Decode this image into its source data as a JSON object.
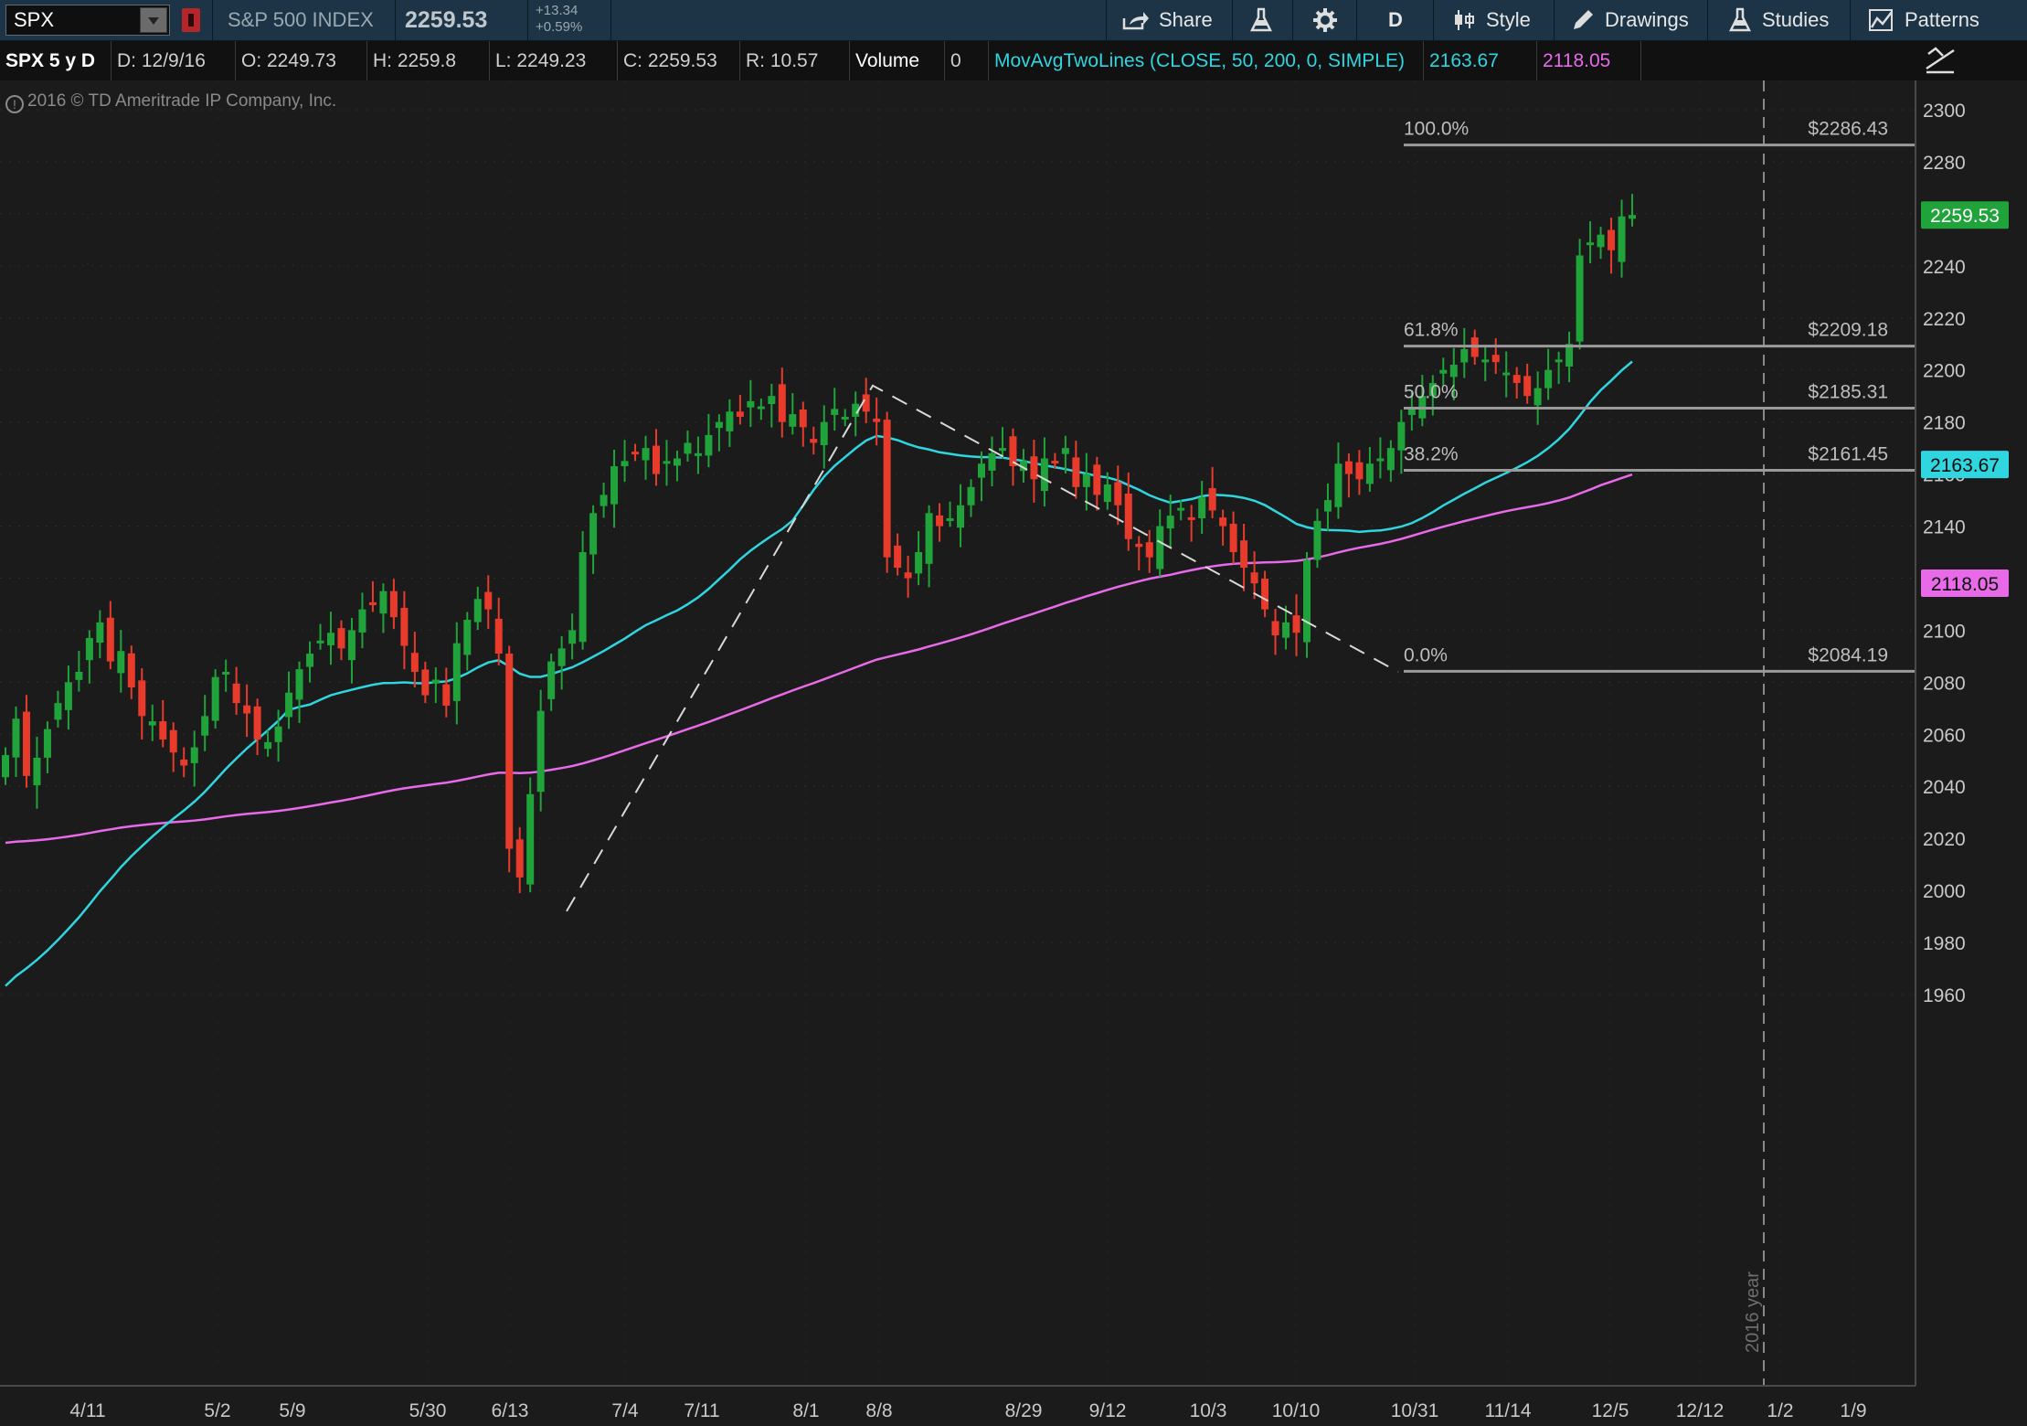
{
  "toolbar": {
    "symbol": "SPX",
    "index_name": "S&P 500 INDEX",
    "last_price": "2259.53",
    "change_abs": "+13.34",
    "change_pct": "+0.59%",
    "share_label": "Share",
    "timeframe_label": "D",
    "style_label": "Style",
    "drawings_label": "Drawings",
    "studies_label": "Studies",
    "patterns_label": "Patterns"
  },
  "info_bar": {
    "chart_title": "SPX 5 y D",
    "date": "D:  12/9/16",
    "open": "O:  2249.73",
    "high": "H:  2259.8",
    "low": "L:  2249.23",
    "close": "C:  2259.53",
    "range": "R:  10.57",
    "volume_label": "Volume",
    "volume_value": "0",
    "study_label": "MovAvgTwoLines (CLOSE, 50, 200, 0, SIMPLE)",
    "ma_fast_value": "2163.67",
    "ma_slow_value": "2118.05"
  },
  "copyright": "2016 © TD Ameritrade IP Company, Inc.",
  "colors": {
    "up": "#1fa33a",
    "down": "#e83b2c",
    "ma_fast": "#2fd5df",
    "ma_slow": "#e86ae8",
    "price_tag": "#1fa33a",
    "fib_line": "#9a9a9a"
  },
  "chart_data": {
    "type": "candlestick",
    "symbol": "SPX",
    "y_axis_ticks": [
      1960,
      1980,
      2000,
      2020,
      2040,
      2060,
      2080,
      2100,
      2120,
      2140,
      2160,
      2180,
      2200,
      2220,
      2240,
      2260,
      2280,
      2300
    ],
    "ylim": [
      1944,
      2316
    ],
    "x_tick_labels": [
      "4/11",
      "5/2",
      "5/9",
      "5/30",
      "6/13",
      "7/4",
      "7/11",
      "8/1",
      "8/8",
      "8/29",
      "9/12",
      "10/3",
      "10/10",
      "10/31",
      "11/14",
      "12/5",
      "12/12",
      "1/2",
      "1/9"
    ],
    "year_marker": "2016 year",
    "last_price_tag": 2259.53,
    "ma_fast_tag": 2163.67,
    "ma_slow_tag": 2118.05,
    "fibonacci": [
      {
        "label": "100.0%",
        "price_label": "$2286.43",
        "value": 2286.43
      },
      {
        "label": "61.8%",
        "price_label": "$2209.18",
        "value": 2209.18
      },
      {
        "label": "50.0%",
        "price_label": "$2185.31",
        "value": 2185.31
      },
      {
        "label": "38.2%",
        "price_label": "$2161.45",
        "value": 2161.45
      },
      {
        "label": "0.0%",
        "price_label": "$2084.19",
        "value": 2084.19
      }
    ],
    "close_path": [
      [
        2052,
        2066
      ],
      [
        2044,
        2051
      ],
      [
        2062,
        2072
      ],
      [
        2080,
        2084
      ],
      [
        2097,
        2103
      ],
      [
        2088,
        2092
      ],
      [
        2078,
        2067
      ],
      [
        2065,
        2058
      ],
      [
        2053,
        2048
      ],
      [
        2055,
        2067
      ],
      [
        2082,
        2084
      ],
      [
        2072,
        2068
      ],
      [
        2058,
        2057
      ],
      [
        2063,
        2076
      ],
      [
        2085,
        2091
      ],
      [
        2096,
        2099
      ],
      [
        2093,
        2100
      ],
      [
        2108,
        2110
      ],
      [
        2115,
        2105
      ],
      [
        2094,
        2084
      ],
      [
        2075,
        2081
      ],
      [
        2071,
        2095
      ],
      [
        2104,
        2112
      ],
      [
        2108,
        2091
      ],
      [
        2016,
        2005
      ],
      [
        2037,
        2069
      ],
      [
        2088,
        2093
      ],
      [
        2100,
        2130
      ],
      [
        2145,
        2152
      ],
      [
        2163,
        2165
      ],
      [
        2168,
        2170
      ],
      [
        2160,
        2165
      ],
      [
        2166,
        2172
      ],
      [
        2168,
        2175
      ],
      [
        2180,
        2184
      ],
      [
        2182,
        2188
      ],
      [
        2186,
        2190
      ],
      [
        2180,
        2183
      ],
      [
        2178,
        2172
      ],
      [
        2180,
        2185
      ],
      [
        2182,
        2187
      ],
      [
        2184,
        2180
      ],
      [
        2128,
        2124
      ],
      [
        2120,
        2130
      ],
      [
        2145,
        2140
      ],
      [
        2143,
        2148
      ],
      [
        2155,
        2164
      ],
      [
        2168,
        2170
      ],
      [
        2163,
        2165
      ],
      [
        2158,
        2166
      ],
      [
        2165,
        2170
      ],
      [
        2155,
        2160
      ],
      [
        2152,
        2156
      ],
      [
        2148,
        2135
      ],
      [
        2132,
        2128
      ],
      [
        2140,
        2144
      ],
      [
        2147,
        2143
      ],
      [
        2151,
        2146
      ],
      [
        2140,
        2130
      ],
      [
        2124,
        2118
      ],
      [
        2108,
        2098
      ],
      [
        2103,
        2099
      ],
      [
        2127,
        2142
      ],
      [
        2150,
        2164
      ],
      [
        2160,
        2158
      ],
      [
        2164,
        2166
      ],
      [
        2170,
        2180
      ],
      [
        2185,
        2190
      ],
      [
        2195,
        2200
      ],
      [
        2202,
        2208
      ],
      [
        2205,
        2204
      ],
      [
        2203,
        2199
      ],
      [
        2195,
        2190
      ],
      [
        2193,
        2200
      ],
      [
        2204,
        2210
      ],
      [
        2244,
        2249
      ],
      [
        2252,
        2246
      ],
      [
        2259,
        2259.53
      ]
    ]
  }
}
